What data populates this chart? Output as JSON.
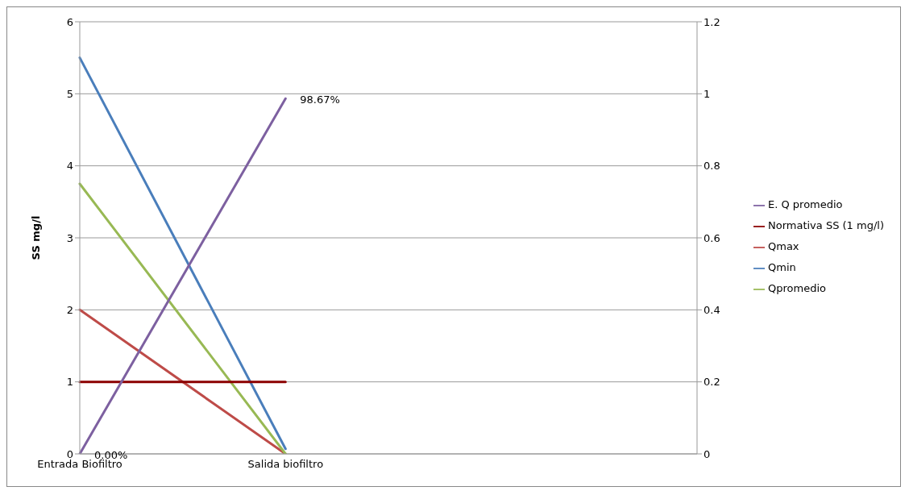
{
  "chart_data": {
    "type": "line",
    "ylabel": "SS mg/l",
    "categories": [
      "Entrada Biofiltro",
      "Salida biofiltro",
      null,
      null
    ],
    "series": [
      {
        "name": "Qmin",
        "color": "#4a7ebb",
        "values": [
          5.5,
          0.07,
          null,
          null
        ]
      },
      {
        "name": "Qmax",
        "color": "#be4b48",
        "values": [
          2,
          0,
          null,
          null
        ]
      },
      {
        "name": "Qpromedio",
        "color": "#98b954",
        "values": [
          3.75,
          0,
          null,
          null
        ]
      },
      {
        "name": "Normativa SS (1 mg/l)",
        "color": "#8b0000",
        "values": [
          1,
          1,
          null,
          null
        ]
      },
      {
        "name": "E. Q promedio",
        "color": "#7d60a0",
        "axis": "y2",
        "values": [
          0,
          0.9867,
          null,
          null
        ],
        "value_labels": [
          "0.00%",
          "98.67%",
          null,
          null
        ]
      }
    ],
    "ylim": [
      0,
      6
    ],
    "yticks": [
      0,
      1,
      2,
      3,
      4,
      5,
      6
    ],
    "y2lim": [
      0,
      1.2
    ],
    "y2ticks": [
      0,
      0.2,
      0.4,
      0.6,
      0.8,
      1,
      1.2
    ],
    "grid": "y",
    "legend": "right",
    "marker": "none",
    "line_style": "solid"
  }
}
